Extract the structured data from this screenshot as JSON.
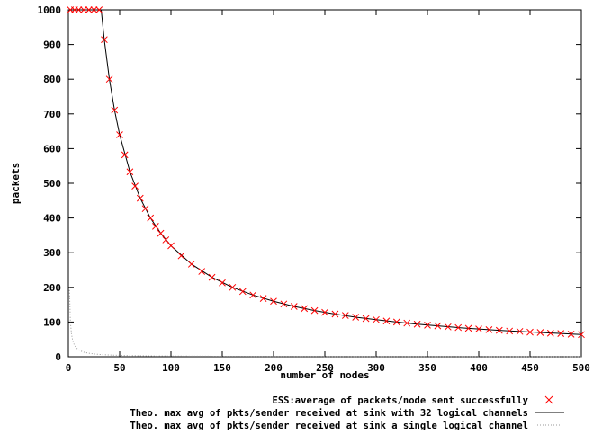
{
  "chart_data": {
    "type": "line",
    "xlabel": "number of nodes",
    "ylabel": "packets",
    "xlim": [
      0,
      500
    ],
    "ylim": [
      0,
      1000
    ],
    "xticks": [
      "0",
      "50",
      "100",
      "150",
      "200",
      "250",
      "300",
      "350",
      "400",
      "450",
      "500"
    ],
    "yticks": [
      "0",
      "100",
      "200",
      "300",
      "400",
      "500",
      "600",
      "700",
      "800",
      "900",
      "1000"
    ],
    "grid": false,
    "legend_position": "bottom-right",
    "series": [
      {
        "name": "ESS:average of packets/node sent successfully",
        "style": "markers-x",
        "color": "#ff0000",
        "x": [
          2,
          6,
          10,
          15,
          20,
          25,
          30,
          35,
          40,
          45,
          50,
          55,
          60,
          65,
          70,
          75,
          80,
          85,
          90,
          95,
          100,
          110,
          120,
          130,
          140,
          150,
          160,
          170,
          180,
          190,
          200,
          210,
          220,
          230,
          240,
          250,
          260,
          270,
          280,
          290,
          300,
          310,
          320,
          330,
          340,
          350,
          360,
          370,
          380,
          390,
          400,
          410,
          420,
          430,
          440,
          450,
          460,
          470,
          480,
          490,
          500
        ],
        "y": [
          1000,
          1000,
          1000,
          1000,
          1000,
          1000,
          1000,
          914,
          800,
          711,
          640,
          582,
          533,
          492,
          457,
          427,
          400,
          376,
          356,
          337,
          320,
          291,
          267,
          246,
          229,
          213,
          200,
          188,
          178,
          168,
          160,
          152,
          145,
          139,
          133,
          128,
          123,
          119,
          114,
          110,
          107,
          103,
          100,
          97,
          94,
          91,
          89,
          86,
          84,
          82,
          80,
          78,
          76,
          74,
          73,
          71,
          70,
          68,
          67,
          65,
          64
        ]
      },
      {
        "name": "Theo. max avg of pkts/sender received at sink with 32 logical channels",
        "style": "solid",
        "color": "#000000",
        "x": [
          0,
          32,
          35,
          40,
          45,
          50,
          60,
          70,
          80,
          90,
          100,
          120,
          140,
          160,
          180,
          200,
          220,
          240,
          260,
          280,
          300,
          320,
          340,
          360,
          380,
          400,
          420,
          440,
          460,
          480,
          500
        ],
        "y": [
          1000,
          1000,
          914,
          800,
          711,
          640,
          533,
          457,
          400,
          356,
          320,
          267,
          229,
          200,
          178,
          160,
          145,
          133,
          123,
          114,
          107,
          100,
          94,
          89,
          84,
          80,
          76,
          73,
          70,
          67,
          64
        ]
      },
      {
        "name": "Theo. max avg of pkts/sender received at sink a single logical channel",
        "style": "dotted",
        "color": "#999999",
        "x": [
          1,
          2,
          3,
          4,
          5,
          6,
          8,
          10,
          12,
          15,
          20,
          25,
          30,
          40,
          50,
          60,
          80,
          100,
          150,
          200,
          250,
          300,
          350,
          400,
          450,
          500
        ],
        "y": [
          200,
          100,
          66.7,
          50,
          40,
          33.3,
          25,
          20,
          16.7,
          13.3,
          10,
          8,
          6.7,
          5,
          4,
          3.3,
          2.5,
          2,
          1.3,
          1,
          0.8,
          0.7,
          0.6,
          0.5,
          0.4,
          0.4
        ]
      }
    ]
  }
}
